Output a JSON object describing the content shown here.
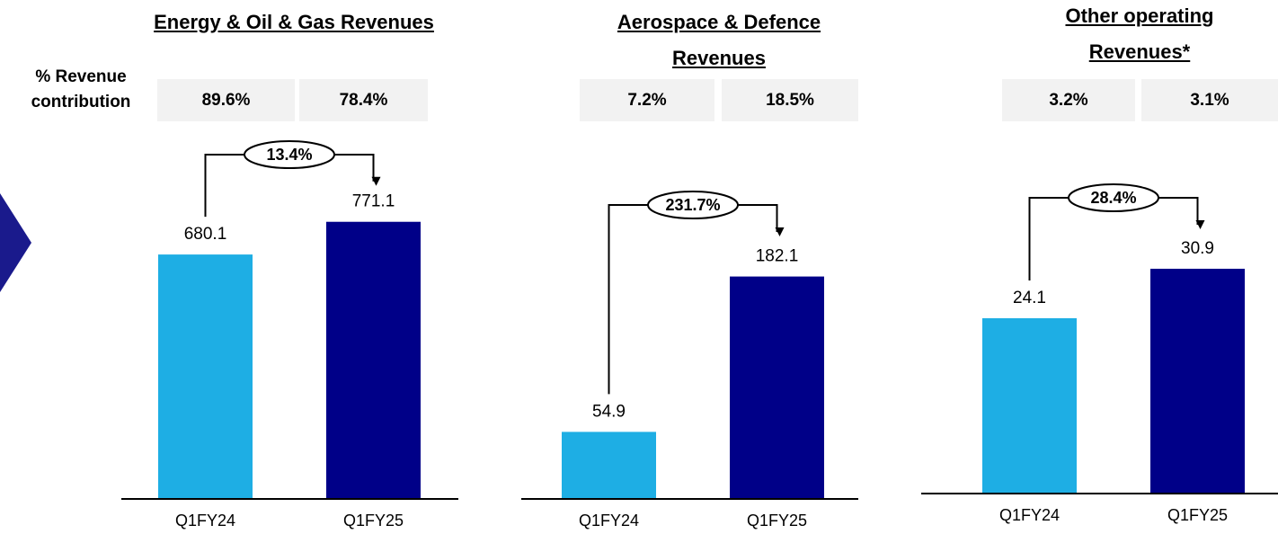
{
  "contribution_label": "% Revenue contribution",
  "chart_data": [
    {
      "type": "bar",
      "title": "Energy & Oil & Gas Revenues",
      "categories": [
        "Q1FY24",
        "Q1FY25"
      ],
      "values": [
        680.1,
        771.1
      ],
      "colors": [
        "#1eaee4",
        "#000088"
      ],
      "ylim": [
        0,
        938
      ],
      "contribution": [
        "89.6%",
        "78.4%"
      ],
      "growth": "13.4%"
    },
    {
      "type": "bar",
      "title": "Aerospace & Defence Revenues",
      "categories": [
        "Q1FY24",
        "Q1FY25"
      ],
      "values": [
        54.9,
        182.1
      ],
      "colors": [
        "#1eaee4",
        "#000088"
      ],
      "ylim": [
        0,
        276
      ],
      "contribution": [
        "7.2%",
        "18.5%"
      ],
      "growth": "231.7%"
    },
    {
      "type": "bar",
      "title": "Other operating Revenues*",
      "categories": [
        "Q1FY24",
        "Q1FY25"
      ],
      "values": [
        24.1,
        30.9
      ],
      "colors": [
        "#1eaee4",
        "#000088"
      ],
      "ylim": [
        0,
        45.6
      ],
      "contribution": [
        "3.2%",
        "3.1%"
      ],
      "growth": "28.4%"
    }
  ]
}
